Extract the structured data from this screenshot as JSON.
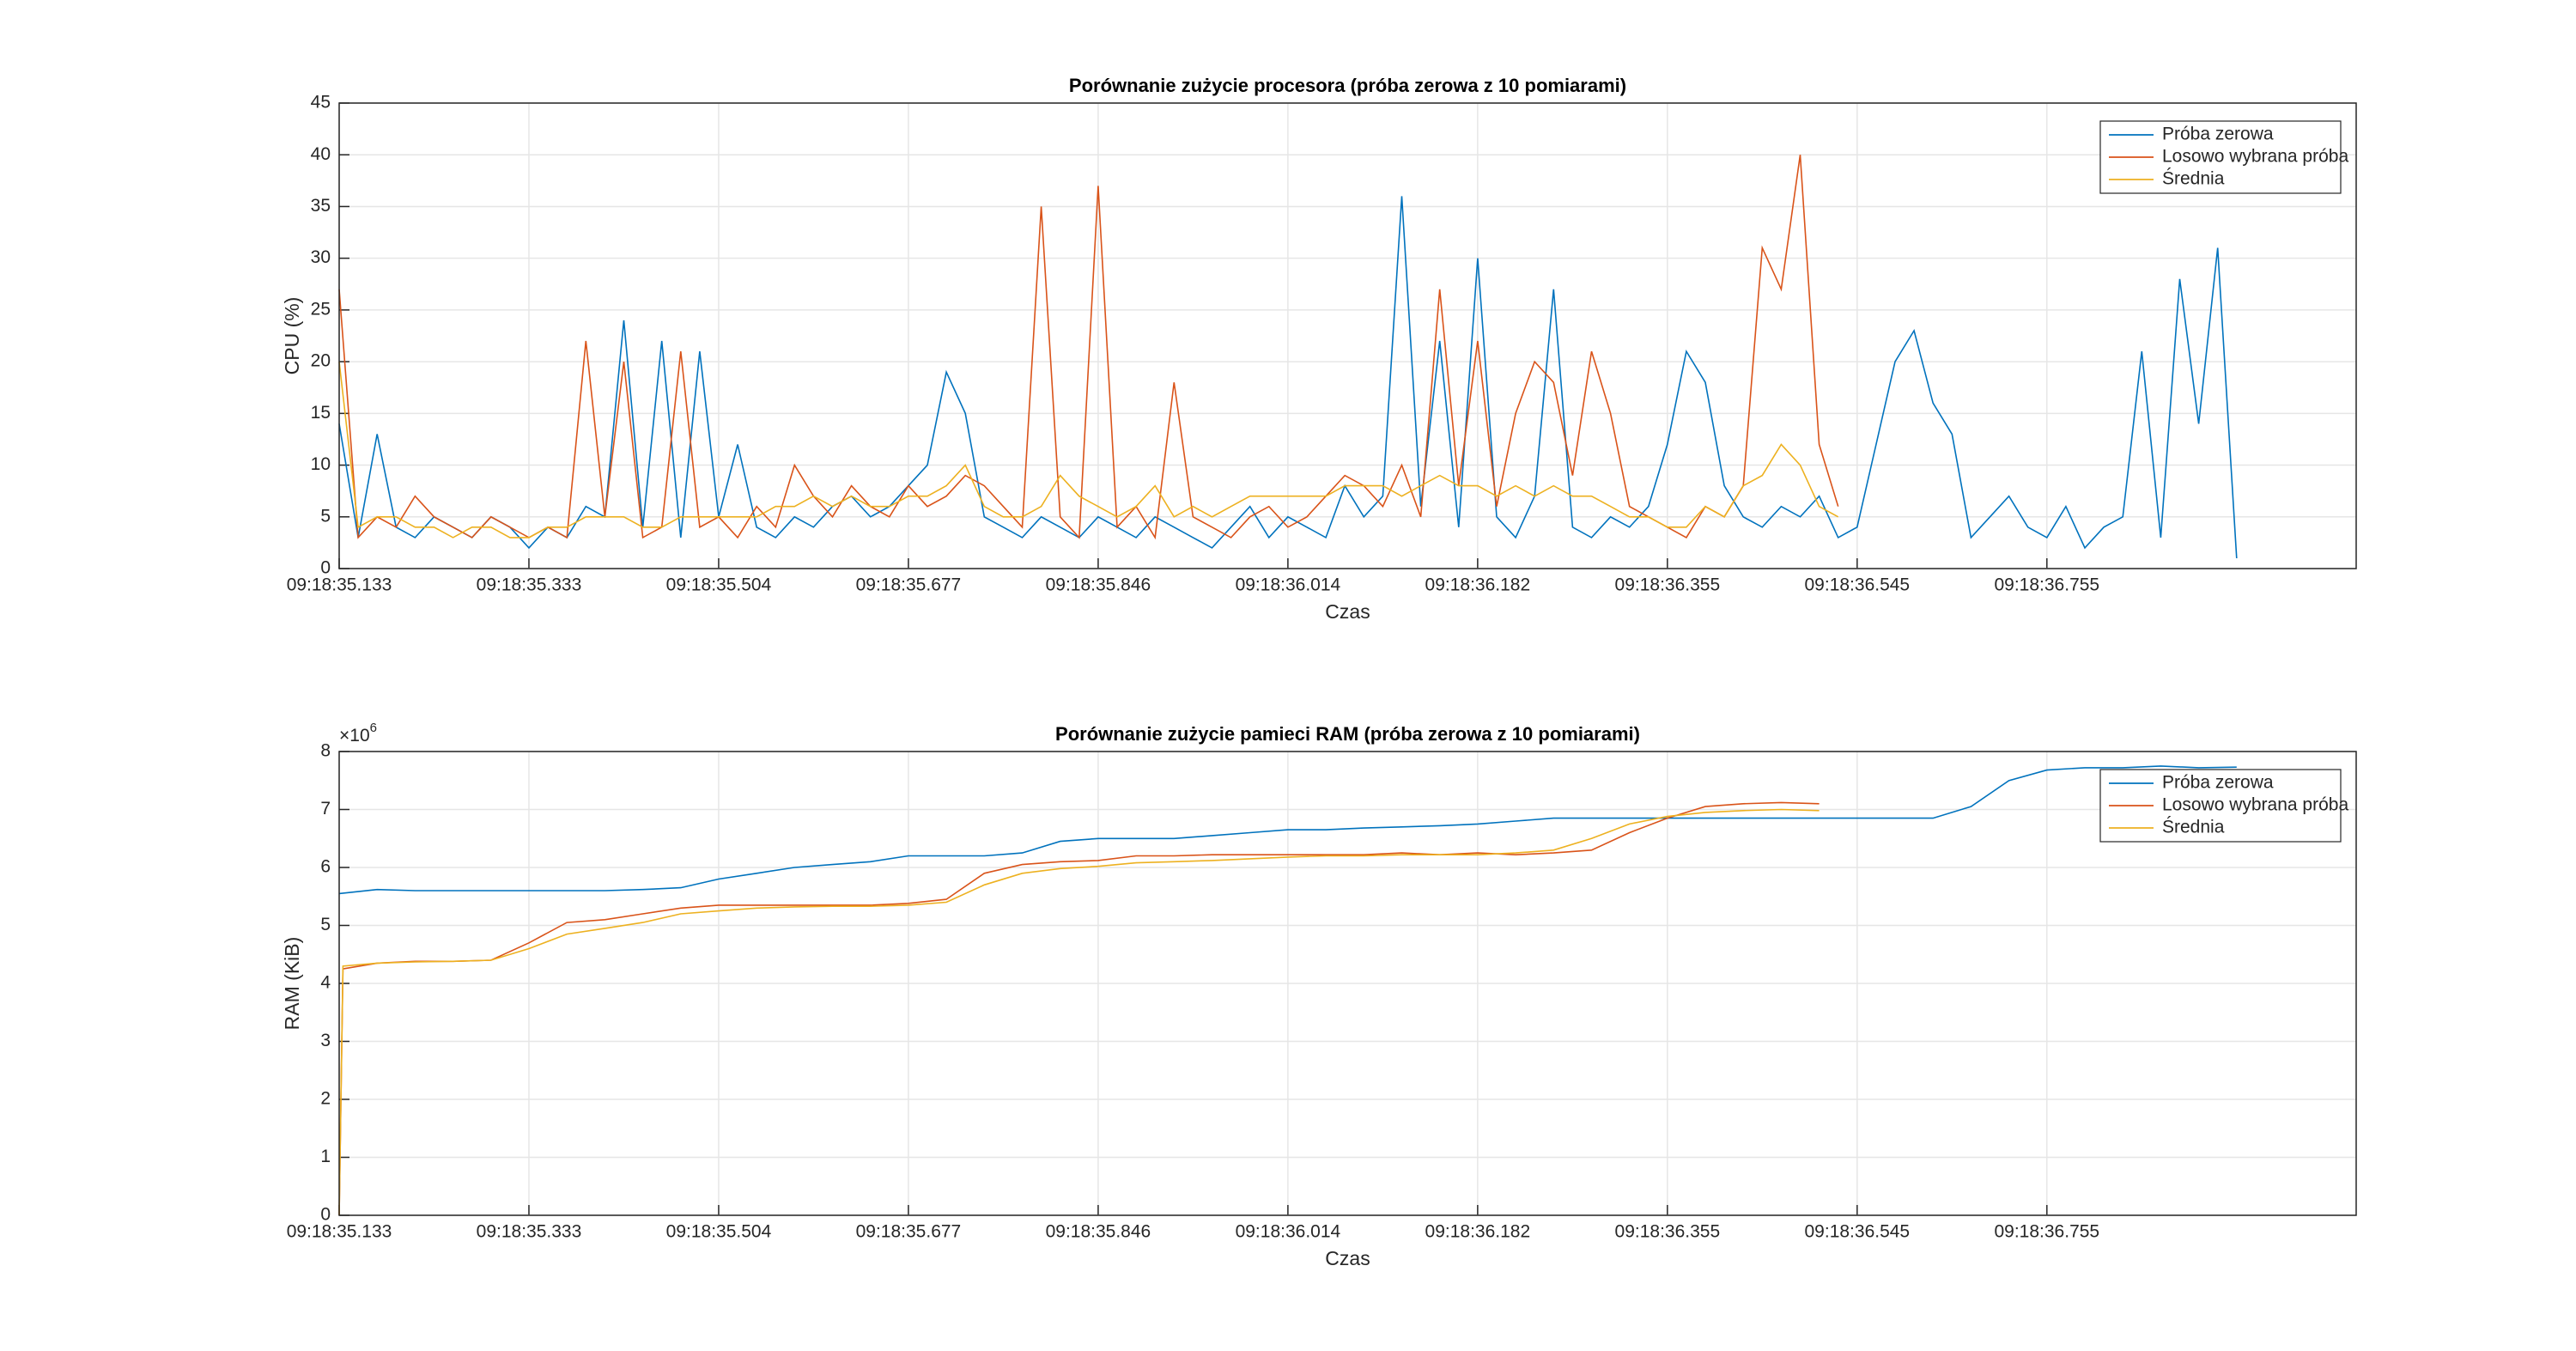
{
  "chart_data": [
    {
      "type": "line",
      "title": "Porównanie zużycie procesora (próba zerowa z 10 pomiarami)",
      "xlabel": "Czas",
      "ylabel": "CPU (%)",
      "xlim": [
        0,
        1063
      ],
      "ylim": [
        0,
        45
      ],
      "xticks": [
        {
          "value": 0,
          "label": "09:18:35.133"
        },
        {
          "value": 100,
          "label": "09:18:35.333"
        },
        {
          "value": 200,
          "label": "09:18:35.504"
        },
        {
          "value": 300,
          "label": "09:18:35.677"
        },
        {
          "value": 400,
          "label": "09:18:35.846"
        },
        {
          "value": 500,
          "label": "09:18:36.014"
        },
        {
          "value": 600,
          "label": "09:18:36.182"
        },
        {
          "value": 700,
          "label": "09:18:36.355"
        },
        {
          "value": 800,
          "label": "09:18:36.545"
        },
        {
          "value": 900,
          "label": "09:18:36.755"
        }
      ],
      "yticks": [
        0,
        5,
        10,
        15,
        20,
        25,
        30,
        35,
        40,
        45
      ],
      "grid": true,
      "legend": "northeast",
      "series": [
        {
          "name": "Próba zerowa",
          "color": "#0072BD",
          "x": [
            0,
            10,
            20,
            30,
            40,
            50,
            60,
            70,
            80,
            90,
            100,
            110,
            120,
            130,
            140,
            150,
            160,
            170,
            180,
            190,
            200,
            210,
            220,
            230,
            240,
            250,
            260,
            270,
            280,
            290,
            300,
            310,
            320,
            330,
            340,
            350,
            360,
            370,
            380,
            390,
            400,
            410,
            420,
            430,
            440,
            450,
            460,
            470,
            480,
            490,
            500,
            510,
            520,
            530,
            540,
            550,
            560,
            570,
            580,
            590,
            600,
            610,
            620,
            630,
            640,
            650,
            660,
            670,
            680,
            690,
            700,
            710,
            720,
            730,
            740,
            750,
            760,
            770,
            780,
            790,
            800,
            810,
            820,
            830,
            840,
            850,
            860,
            870,
            880,
            890,
            900,
            910,
            920,
            930,
            940,
            950,
            960,
            970,
            980,
            990,
            1000
          ],
          "values": [
            14,
            3,
            13,
            4,
            3,
            5,
            4,
            3,
            5,
            4,
            2,
            4,
            3,
            6,
            5,
            24,
            4,
            22,
            3,
            21,
            5,
            12,
            4,
            3,
            5,
            4,
            6,
            7,
            5,
            6,
            8,
            10,
            19,
            15,
            5,
            4,
            3,
            5,
            4,
            3,
            5,
            4,
            3,
            5,
            4,
            3,
            2,
            4,
            6,
            3,
            5,
            4,
            3,
            8,
            5,
            7,
            36,
            6,
            22,
            4,
            30,
            5,
            3,
            7,
            27,
            4,
            3,
            5,
            4,
            6,
            12,
            21,
            18,
            8,
            5,
            4,
            6,
            5,
            7,
            3,
            4,
            12,
            20,
            23,
            16,
            13,
            3,
            5,
            7,
            4,
            3,
            6,
            2,
            4,
            5,
            21,
            3,
            28,
            14,
            31,
            1
          ]
        },
        {
          "name": "Losowo wybrana próba",
          "color": "#D95319",
          "x": [
            0,
            10,
            20,
            30,
            40,
            50,
            60,
            70,
            80,
            90,
            100,
            110,
            120,
            130,
            140,
            150,
            160,
            170,
            180,
            190,
            200,
            210,
            220,
            230,
            240,
            250,
            260,
            270,
            280,
            290,
            300,
            310,
            320,
            330,
            340,
            350,
            360,
            370,
            380,
            390,
            400,
            410,
            420,
            430,
            440,
            450,
            460,
            470,
            480,
            490,
            500,
            510,
            520,
            530,
            540,
            550,
            560,
            570,
            580,
            590,
            600,
            610,
            620,
            630,
            640,
            650,
            660,
            670,
            680,
            690,
            700,
            710,
            720,
            730,
            740,
            750,
            760,
            770,
            780,
            790
          ],
          "values": [
            27,
            3,
            5,
            4,
            7,
            5,
            4,
            3,
            5,
            4,
            3,
            4,
            3,
            22,
            5,
            20,
            3,
            4,
            21,
            4,
            5,
            3,
            6,
            4,
            10,
            7,
            5,
            8,
            6,
            5,
            8,
            6,
            7,
            9,
            8,
            6,
            4,
            35,
            5,
            3,
            37,
            4,
            6,
            3,
            18,
            5,
            4,
            3,
            5,
            6,
            4,
            5,
            7,
            9,
            8,
            6,
            10,
            5,
            27,
            8,
            22,
            6,
            15,
            20,
            18,
            9,
            21,
            15,
            6,
            5,
            4,
            3,
            6,
            5,
            8,
            31,
            27,
            40,
            12,
            6
          ]
        },
        {
          "name": "Średnia",
          "color": "#EDB120",
          "x": [
            0,
            10,
            20,
            30,
            40,
            50,
            60,
            70,
            80,
            90,
            100,
            110,
            120,
            130,
            140,
            150,
            160,
            170,
            180,
            190,
            200,
            210,
            220,
            230,
            240,
            250,
            260,
            270,
            280,
            290,
            300,
            310,
            320,
            330,
            340,
            350,
            360,
            370,
            380,
            390,
            400,
            410,
            420,
            430,
            440,
            450,
            460,
            470,
            480,
            490,
            500,
            510,
            520,
            530,
            540,
            550,
            560,
            570,
            580,
            590,
            600,
            610,
            620,
            630,
            640,
            650,
            660,
            670,
            680,
            690,
            700,
            710,
            720,
            730,
            740,
            750,
            760,
            770,
            780,
            790
          ],
          "values": [
            20,
            4,
            5,
            5,
            4,
            4,
            3,
            4,
            4,
            3,
            3,
            4,
            4,
            5,
            5,
            5,
            4,
            4,
            5,
            5,
            5,
            5,
            5,
            6,
            6,
            7,
            6,
            7,
            6,
            6,
            7,
            7,
            8,
            10,
            6,
            5,
            5,
            6,
            9,
            7,
            6,
            5,
            6,
            8,
            5,
            6,
            5,
            6,
            7,
            7,
            7,
            7,
            7,
            8,
            8,
            8,
            7,
            8,
            9,
            8,
            8,
            7,
            8,
            7,
            8,
            7,
            7,
            6,
            5,
            5,
            4,
            4,
            6,
            5,
            8,
            9,
            12,
            10,
            6,
            5
          ]
        }
      ]
    },
    {
      "type": "line",
      "title": "Porównanie zużycie pamieci RAM (próba zerowa z 10 pomiarami)",
      "xlabel": "Czas",
      "ylabel": "RAM (KiB)",
      "y_exponent": {
        "base": "×10",
        "power": "6"
      },
      "xlim": [
        0,
        1063
      ],
      "ylim": [
        0,
        8
      ],
      "xticks": [
        {
          "value": 0,
          "label": "09:18:35.133"
        },
        {
          "value": 100,
          "label": "09:18:35.333"
        },
        {
          "value": 200,
          "label": "09:18:35.504"
        },
        {
          "value": 300,
          "label": "09:18:35.677"
        },
        {
          "value": 400,
          "label": "09:18:35.846"
        },
        {
          "value": 500,
          "label": "09:18:36.014"
        },
        {
          "value": 600,
          "label": "09:18:36.182"
        },
        {
          "value": 700,
          "label": "09:18:36.355"
        },
        {
          "value": 800,
          "label": "09:18:36.545"
        },
        {
          "value": 900,
          "label": "09:18:36.755"
        }
      ],
      "yticks": [
        0,
        1,
        2,
        3,
        4,
        5,
        6,
        7,
        8
      ],
      "grid": true,
      "legend": "northeast",
      "series": [
        {
          "name": "Próba zerowa",
          "color": "#0072BD",
          "x": [
            0,
            20,
            40,
            60,
            80,
            100,
            120,
            140,
            160,
            180,
            200,
            220,
            240,
            260,
            280,
            300,
            320,
            340,
            360,
            380,
            400,
            420,
            440,
            460,
            480,
            500,
            520,
            540,
            560,
            580,
            600,
            620,
            640,
            660,
            680,
            700,
            720,
            740,
            760,
            780,
            800,
            820,
            840,
            860,
            880,
            900,
            920,
            940,
            960,
            980,
            1000
          ],
          "values": [
            5.55,
            5.62,
            5.6,
            5.6,
            5.6,
            5.6,
            5.6,
            5.6,
            5.62,
            5.65,
            5.8,
            5.9,
            6.0,
            6.05,
            6.1,
            6.2,
            6.2,
            6.2,
            6.25,
            6.45,
            6.5,
            6.5,
            6.5,
            6.55,
            6.6,
            6.65,
            6.65,
            6.68,
            6.7,
            6.72,
            6.75,
            6.8,
            6.85,
            6.85,
            6.85,
            6.85,
            6.85,
            6.85,
            6.85,
            6.85,
            6.85,
            6.85,
            6.85,
            7.05,
            7.5,
            7.68,
            7.72,
            7.72,
            7.75,
            7.72,
            7.73
          ]
        },
        {
          "name": "Losowo wybrana próba",
          "color": "#D95319",
          "x": [
            0,
            2,
            20,
            40,
            60,
            80,
            100,
            120,
            140,
            160,
            180,
            200,
            220,
            240,
            260,
            280,
            300,
            320,
            340,
            360,
            380,
            400,
            420,
            440,
            460,
            480,
            500,
            520,
            540,
            560,
            580,
            600,
            620,
            640,
            660,
            680,
            700,
            720,
            740,
            760,
            780
          ],
          "values": [
            0,
            4.25,
            4.35,
            4.38,
            4.38,
            4.4,
            4.7,
            5.05,
            5.1,
            5.2,
            5.3,
            5.35,
            5.35,
            5.35,
            5.35,
            5.35,
            5.38,
            5.45,
            5.9,
            6.05,
            6.1,
            6.12,
            6.2,
            6.2,
            6.22,
            6.22,
            6.22,
            6.22,
            6.22,
            6.25,
            6.22,
            6.25,
            6.22,
            6.25,
            6.3,
            6.6,
            6.85,
            7.05,
            7.1,
            7.12,
            7.1
          ]
        },
        {
          "name": "Średnia",
          "color": "#EDB120",
          "x": [
            0,
            2,
            20,
            40,
            60,
            80,
            100,
            120,
            140,
            160,
            180,
            200,
            220,
            240,
            260,
            280,
            300,
            320,
            340,
            360,
            380,
            400,
            420,
            440,
            460,
            480,
            500,
            520,
            540,
            560,
            580,
            600,
            620,
            640,
            660,
            680,
            700,
            720,
            740,
            760,
            780
          ],
          "values": [
            0,
            4.3,
            4.35,
            4.37,
            4.38,
            4.4,
            4.6,
            4.85,
            4.95,
            5.05,
            5.2,
            5.25,
            5.3,
            5.32,
            5.33,
            5.33,
            5.35,
            5.4,
            5.7,
            5.9,
            5.98,
            6.02,
            6.08,
            6.1,
            6.12,
            6.15,
            6.18,
            6.2,
            6.2,
            6.22,
            6.22,
            6.22,
            6.25,
            6.3,
            6.5,
            6.75,
            6.88,
            6.95,
            6.98,
            7.0,
            6.98
          ]
        }
      ]
    }
  ]
}
